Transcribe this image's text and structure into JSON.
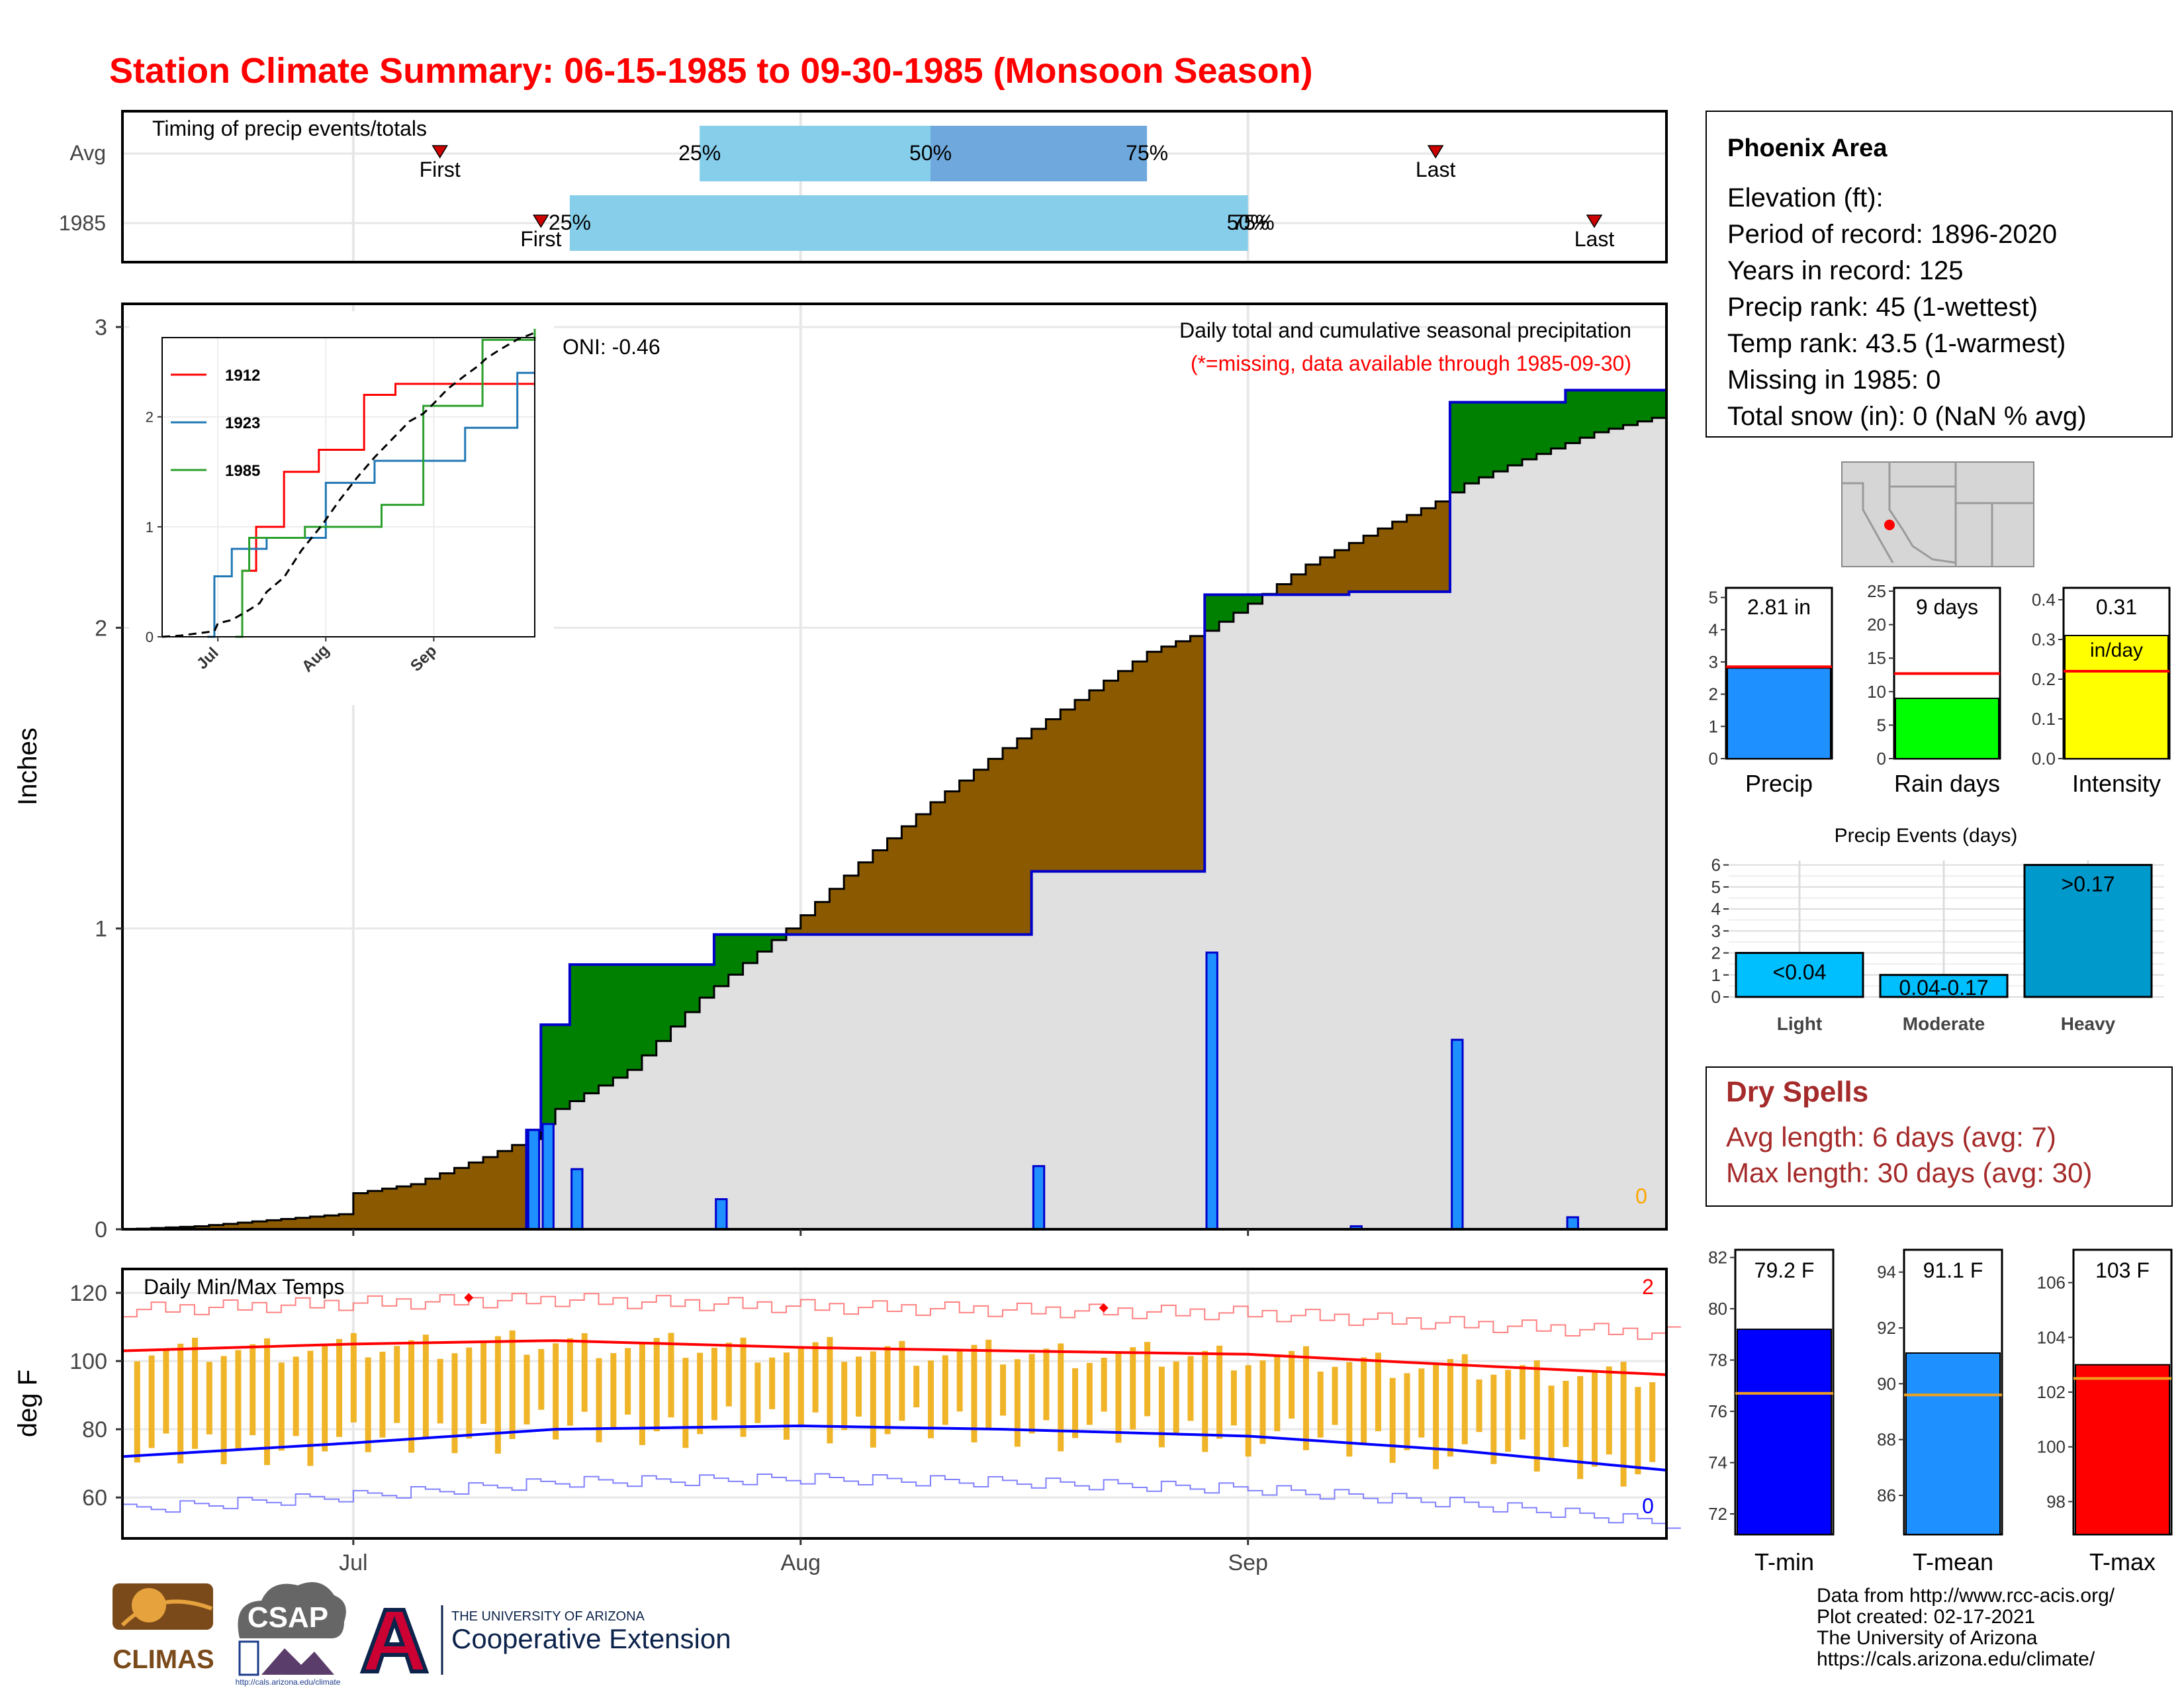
{
  "title": "Station Climate Summary: 06-15-1985 to 09-30-1985 (Monsoon Season)",
  "colors": {
    "title_red": "#ff0000",
    "above_avg_green": "#008000",
    "below_avg_brown": "#8b5a00",
    "cumulative_avg_fill": "#e0e0e0",
    "daily_precip_blue": "#1e90ff",
    "timing_light": "#87ceeb",
    "timing_mid": "#6fa8dc",
    "temp_bar": "#f0b429",
    "tmax_red": "#ff0000",
    "tmin_blue": "#0000ff",
    "rain_days_green": "#00ff00",
    "intensity_yellow": "#ffff00",
    "events_blue": "#00bfff",
    "events_heavy": "#0099cc",
    "dry_spell_text": "#a52a2a"
  },
  "timing": {
    "label": "Timing of precip events/totals",
    "rows": [
      {
        "name": "Avg",
        "first_label": "First",
        "last_label": "Last",
        "p25": "25%",
        "p50": "50%",
        "p75": "75%",
        "first_date": "1985-07-07",
        "last_date": "1985-09-14",
        "p25_date": "1985-07-25",
        "p50_date": "1985-08-10",
        "p75_date": "1985-08-25"
      },
      {
        "name": "1985",
        "first_label": "First",
        "last_label": "Last",
        "p25": "25%",
        "p50": "50%",
        "p75": "75%",
        "first_date": "1985-07-14",
        "last_date": "1985-09-25",
        "p25_date": "1985-07-16",
        "p50_date": "1985-09-01",
        "p75_date": "1985-09-01"
      }
    ]
  },
  "precip_panel": {
    "title": "Daily total and cumulative seasonal precipitation",
    "subtitle": "(*=missing, data available through 1985-09-30)",
    "oni": "ONI: -0.46",
    "ylabel": "Inches",
    "yticks": [
      "0",
      "1",
      "2",
      "3"
    ],
    "missing_count": "0",
    "xticks": [
      "Jul",
      "Aug",
      "Sep"
    ]
  },
  "inset": {
    "yticks": [
      "0",
      "1",
      "2"
    ],
    "xticks": [
      "Jul",
      "Aug",
      "Sep"
    ],
    "legend": [
      {
        "name": "1912",
        "color": "#ff0000"
      },
      {
        "name": "1923",
        "color": "#1f77b4"
      },
      {
        "name": "1985",
        "color": "#2ca02c"
      }
    ]
  },
  "temp_panel": {
    "label": "Daily Min/Max Temps",
    "ylabel": "deg F",
    "yticks": [
      "60",
      "80",
      "100",
      "120"
    ],
    "xticks": [
      "Jul",
      "Aug",
      "Sep"
    ],
    "max_record_count": "2",
    "min_record_count": "0"
  },
  "station_info": {
    "name": "Phoenix Area",
    "lines": [
      "Elevation (ft):",
      "Period of record: 1896-2020",
      "Years in record: 125",
      "Precip rank: 45 (1-wettest)",
      "Temp rank: 43.5 (1-warmest)",
      "Missing in 1985: 0",
      "Total snow (in): 0 (NaN % avg)"
    ]
  },
  "summary_bars": [
    {
      "label": "Precip",
      "value_text": "2.81 in",
      "yticks": [
        "0",
        "1",
        "2",
        "3",
        "4",
        "5"
      ]
    },
    {
      "label": "Rain days",
      "value_text": "9 days",
      "yticks": [
        "0",
        "5",
        "10",
        "15",
        "20",
        "25"
      ]
    },
    {
      "label": "Intensity",
      "value_text": "0.31",
      "unit_text": "in/day",
      "yticks": [
        "0.0",
        "0.1",
        "0.2",
        "0.3",
        "0.4"
      ]
    }
  ],
  "precip_events": {
    "title": "Precip Events (days)",
    "yticks": [
      "0",
      "1",
      "2",
      "3",
      "4",
      "5",
      "6"
    ],
    "bars": [
      {
        "label": "Light",
        "value_text": "<0.04"
      },
      {
        "label": "Moderate",
        "value_text": "0.04-0.17"
      },
      {
        "label": "Heavy",
        "value_text": ">0.17"
      }
    ]
  },
  "dry_spells": {
    "title": "Dry Spells",
    "avg_line": "Avg length: 6 days (avg: 7)",
    "max_line": "Max length: 30 days (avg: 30)"
  },
  "temp_bars": [
    {
      "label": "T-min",
      "value_text": "79.2 F",
      "yticks": [
        "72",
        "74",
        "76",
        "78",
        "80",
        "82"
      ]
    },
    {
      "label": "T-mean",
      "value_text": "91.1 F",
      "yticks": [
        "86",
        "88",
        "90",
        "92",
        "94"
      ]
    },
    {
      "label": "T-max",
      "value_text": "103 F",
      "yticks": [
        "98",
        "100",
        "102",
        "104",
        "106"
      ]
    }
  ],
  "footer": {
    "credit_lines": [
      "Data from http://www.rcc-acis.org/",
      "Plot created: 02-17-2021",
      "The University of Arizona",
      "https://cals.arizona.edu/climate/"
    ],
    "logo_climas": "CLIMAS",
    "logo_csap": "CSAP",
    "logo_csap_url": "http://cals.arizona.edu/climate",
    "ua_small": "THE UNIVERSITY OF ARIZONA",
    "ua_big": "Cooperative Extension"
  },
  "chart_data": [
    {
      "type": "area",
      "title": "Daily total and cumulative seasonal precipitation",
      "ylabel": "Inches",
      "x_range": [
        "1985-06-15",
        "1985-09-30"
      ],
      "ylim": [
        0,
        3.05
      ],
      "daily_precip_1985": [
        {
          "date": "1985-07-13",
          "value": 0.33
        },
        {
          "date": "1985-07-14",
          "value": 0.35
        },
        {
          "date": "1985-07-16",
          "value": 0.2
        },
        {
          "date": "1985-07-26",
          "value": 0.1
        },
        {
          "date": "1985-08-17",
          "value": 0.21
        },
        {
          "date": "1985-08-29",
          "value": 0.92
        },
        {
          "date": "1985-09-08",
          "value": 0.01
        },
        {
          "date": "1985-09-15",
          "value": 0.63
        },
        {
          "date": "1985-09-23",
          "value": 0.04
        }
      ],
      "cumulative_avg_points": [
        [
          "1985-06-15",
          0.0
        ],
        [
          "1985-06-20",
          0.01
        ],
        [
          "1985-06-25",
          0.03
        ],
        [
          "1985-06-30",
          0.05
        ],
        [
          "1985-07-01",
          0.12
        ],
        [
          "1985-07-05",
          0.15
        ],
        [
          "1985-07-10",
          0.24
        ],
        [
          "1985-07-13",
          0.3
        ],
        [
          "1985-07-15",
          0.4
        ],
        [
          "1985-07-20",
          0.53
        ],
        [
          "1985-07-25",
          0.77
        ],
        [
          "1985-07-31",
          1.0
        ],
        [
          "1985-08-05",
          1.22
        ],
        [
          "1985-08-10",
          1.42
        ],
        [
          "1985-08-15",
          1.6
        ],
        [
          "1985-08-20",
          1.76
        ],
        [
          "1985-08-25",
          1.92
        ],
        [
          "1985-08-29",
          1.99
        ],
        [
          "1985-09-01",
          2.08
        ],
        [
          "1985-09-05",
          2.21
        ],
        [
          "1985-09-10",
          2.33
        ],
        [
          "1985-09-14",
          2.42
        ],
        [
          "1985-09-16",
          2.48
        ],
        [
          "1985-09-20",
          2.56
        ],
        [
          "1985-09-25",
          2.65
        ],
        [
          "1985-09-30",
          2.71
        ]
      ]
    },
    {
      "type": "line",
      "title": "Cumulative precipitation comparison",
      "series": [
        {
          "name": "1912",
          "points": [
            [
              "1985-07-06",
              0.0
            ],
            [
              "1985-07-08",
              0.6
            ],
            [
              "1985-07-12",
              1.0
            ],
            [
              "1985-07-20",
              1.5
            ],
            [
              "1985-07-30",
              1.7
            ],
            [
              "1985-08-12",
              2.2
            ],
            [
              "1985-08-15",
              2.2
            ],
            [
              "1985-08-21",
              2.3
            ],
            [
              "1985-09-30",
              2.3
            ]
          ]
        },
        {
          "name": "1923",
          "points": [
            [
              "1985-06-28",
              0.0
            ],
            [
              "1985-06-30",
              0.55
            ],
            [
              "1985-07-05",
              0.8
            ],
            [
              "1985-07-15",
              0.9
            ],
            [
              "1985-08-01",
              1.4
            ],
            [
              "1985-08-15",
              1.6
            ],
            [
              "1985-09-10",
              1.9
            ],
            [
              "1985-09-25",
              2.4
            ],
            [
              "1985-09-30",
              2.4
            ]
          ]
        },
        {
          "name": "1985",
          "points": [
            [
              "1985-07-06",
              0.0
            ],
            [
              "1985-07-08",
              0.6
            ],
            [
              "1985-07-10",
              0.9
            ],
            [
              "1985-07-26",
              1.0
            ],
            [
              "1985-08-17",
              1.2
            ],
            [
              "1985-08-29",
              2.1
            ],
            [
              "1985-09-15",
              2.7
            ],
            [
              "1985-09-30",
              2.8
            ]
          ]
        }
      ]
    },
    {
      "type": "bar",
      "title": "Daily Min/Max Temps",
      "ylabel": "deg F",
      "ylim": [
        48,
        127
      ],
      "avg_max_trend": [
        [
          "1985-06-15",
          103
        ],
        [
          "1985-07-01",
          105
        ],
        [
          "1985-07-15",
          106
        ],
        [
          "1985-08-01",
          104
        ],
        [
          "1985-08-15",
          103
        ],
        [
          "1985-09-01",
          102
        ],
        [
          "1985-09-15",
          99
        ],
        [
          "1985-09-30",
          96
        ]
      ],
      "avg_min_trend": [
        [
          "1985-06-15",
          72
        ],
        [
          "1985-07-01",
          76
        ],
        [
          "1985-07-15",
          80
        ],
        [
          "1985-08-01",
          81
        ],
        [
          "1985-08-15",
          80
        ],
        [
          "1985-09-01",
          78
        ],
        [
          "1985-09-15",
          74
        ],
        [
          "1985-09-30",
          68
        ]
      ]
    },
    {
      "type": "bar",
      "categories": [
        "Precip",
        "Rain days",
        "Intensity"
      ],
      "values": [
        2.81,
        9,
        0.31
      ],
      "averages": [
        2.85,
        12.7,
        0.22
      ]
    },
    {
      "type": "bar",
      "title": "Precip Events (days)",
      "categories": [
        "Light",
        "Moderate",
        "Heavy"
      ],
      "values": [
        2,
        1,
        6
      ]
    },
    {
      "type": "bar",
      "categories": [
        "T-min",
        "T-mean",
        "T-max"
      ],
      "values": [
        79.2,
        91.1,
        103
      ],
      "averages": [
        76.7,
        89.6,
        102.5
      ]
    }
  ]
}
